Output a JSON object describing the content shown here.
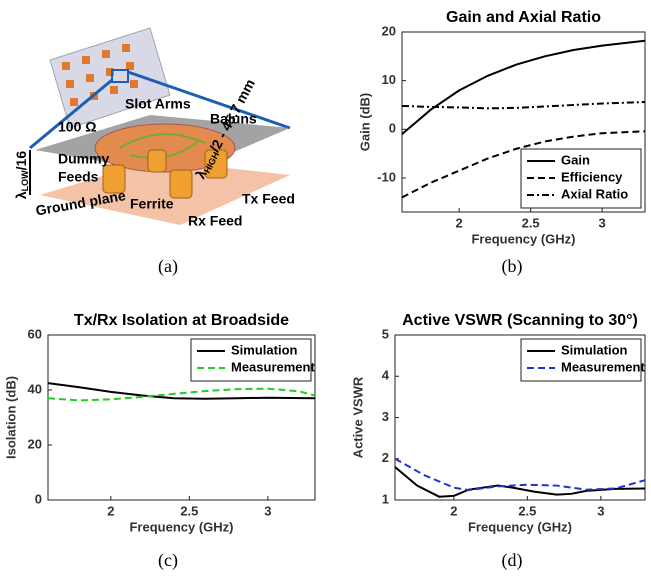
{
  "illustration": {
    "slot_arms": "Slot Arms",
    "baluns": "Baluns",
    "ohm": "100 Ω",
    "lambda_low": {
      "main": "λ",
      "sub": "LOW",
      "rest": "/16"
    },
    "dummy": "Dummy",
    "feeds": "Feeds",
    "lambda_high": {
      "main": "λ",
      "sub": "HIGH",
      "rest": "/2 - 45.7 mm"
    },
    "tx_feed": "Tx Feed",
    "ferrite": "Ferrite",
    "rx_feed": "Rx Feed",
    "ground_plane": "Ground plane"
  },
  "captions": [
    "(a)",
    "(b)",
    "(c)",
    "(d)"
  ],
  "chart_data": [
    {
      "type": "line",
      "title": "Gain and Axial Ratio",
      "xlabel": "Frequency (GHz)",
      "ylabel": "Gain (dB)",
      "xlim": [
        1.6,
        3.3
      ],
      "xticks": [
        2,
        2.5,
        3
      ],
      "ylim": [
        -17,
        20
      ],
      "yticks": [
        -10,
        0,
        10,
        20
      ],
      "legend": "lower right",
      "series": [
        {
          "name": "Gain",
          "color": "#000000",
          "dash": "solid",
          "x": [
            1.6,
            1.8,
            2.0,
            2.2,
            2.4,
            2.6,
            2.8,
            3.0,
            3.3
          ],
          "values": [
            -1,
            4,
            8,
            11,
            13.3,
            15,
            16.3,
            17.2,
            18.2
          ]
        },
        {
          "name": "Efficiency",
          "color": "#000000",
          "dash": "dashed",
          "x": [
            1.6,
            1.8,
            2.0,
            2.2,
            2.4,
            2.6,
            2.8,
            3.0,
            3.3
          ],
          "values": [
            -14,
            -11,
            -8.5,
            -6,
            -4,
            -2.5,
            -1.5,
            -0.8,
            -0.4
          ]
        },
        {
          "name": "Axial Ratio",
          "color": "#000000",
          "dash": "dashdot",
          "x": [
            1.6,
            1.8,
            2.0,
            2.2,
            2.4,
            2.6,
            2.8,
            3.0,
            3.3
          ],
          "values": [
            4.8,
            4.6,
            4.5,
            4.3,
            4.4,
            4.7,
            5,
            5.3,
            5.6
          ]
        }
      ]
    },
    {
      "type": "line",
      "title": "Tx/Rx Isolation at Broadside",
      "xlabel": "Frequency (GHz)",
      "ylabel": "Isolation (dB)",
      "xlim": [
        1.6,
        3.3
      ],
      "xticks": [
        2,
        2.5,
        3
      ],
      "ylim": [
        0,
        60
      ],
      "yticks": [
        0,
        20,
        40,
        60
      ],
      "legend": "upper right",
      "series": [
        {
          "name": "Simulation",
          "color": "#000000",
          "dash": "solid",
          "x": [
            1.6,
            1.8,
            2.0,
            2.2,
            2.4,
            2.6,
            2.8,
            3.0,
            3.3
          ],
          "values": [
            42.5,
            41,
            39.3,
            38,
            37,
            36.8,
            37,
            37.2,
            37
          ]
        },
        {
          "name": "Measurement",
          "color": "#22cc22",
          "dash": "dashed",
          "x": [
            1.6,
            1.8,
            2.0,
            2.2,
            2.4,
            2.6,
            2.8,
            3.0,
            3.2,
            3.3
          ],
          "values": [
            37,
            36.2,
            36.6,
            37.5,
            38.6,
            39.6,
            40.3,
            40.5,
            39.5,
            38
          ]
        }
      ]
    },
    {
      "type": "line",
      "title": "Active VSWR (Scanning to 30°)",
      "xlabel": "Frequency (GHz)",
      "ylabel": "Active VSWR",
      "xlim": [
        1.6,
        3.3
      ],
      "xticks": [
        2,
        2.5,
        3
      ],
      "ylim": [
        1,
        5
      ],
      "yticks": [
        1,
        2,
        3,
        4,
        5
      ],
      "legend": "upper right",
      "series": [
        {
          "name": "Simulation",
          "color": "#000000",
          "dash": "solid",
          "x": [
            1.6,
            1.75,
            1.9,
            2.0,
            2.1,
            2.3,
            2.4,
            2.55,
            2.7,
            2.8,
            2.9,
            3.1,
            3.3
          ],
          "values": [
            1.8,
            1.35,
            1.08,
            1.1,
            1.25,
            1.35,
            1.3,
            1.2,
            1.13,
            1.15,
            1.22,
            1.27,
            1.28
          ]
        },
        {
          "name": "Measurement",
          "color": "#2233cc",
          "dash": "dashed",
          "x": [
            1.6,
            1.8,
            2.0,
            2.1,
            2.3,
            2.5,
            2.7,
            2.9,
            3.1,
            3.3
          ],
          "values": [
            2.0,
            1.6,
            1.3,
            1.24,
            1.33,
            1.37,
            1.35,
            1.25,
            1.28,
            1.48
          ]
        }
      ]
    }
  ]
}
